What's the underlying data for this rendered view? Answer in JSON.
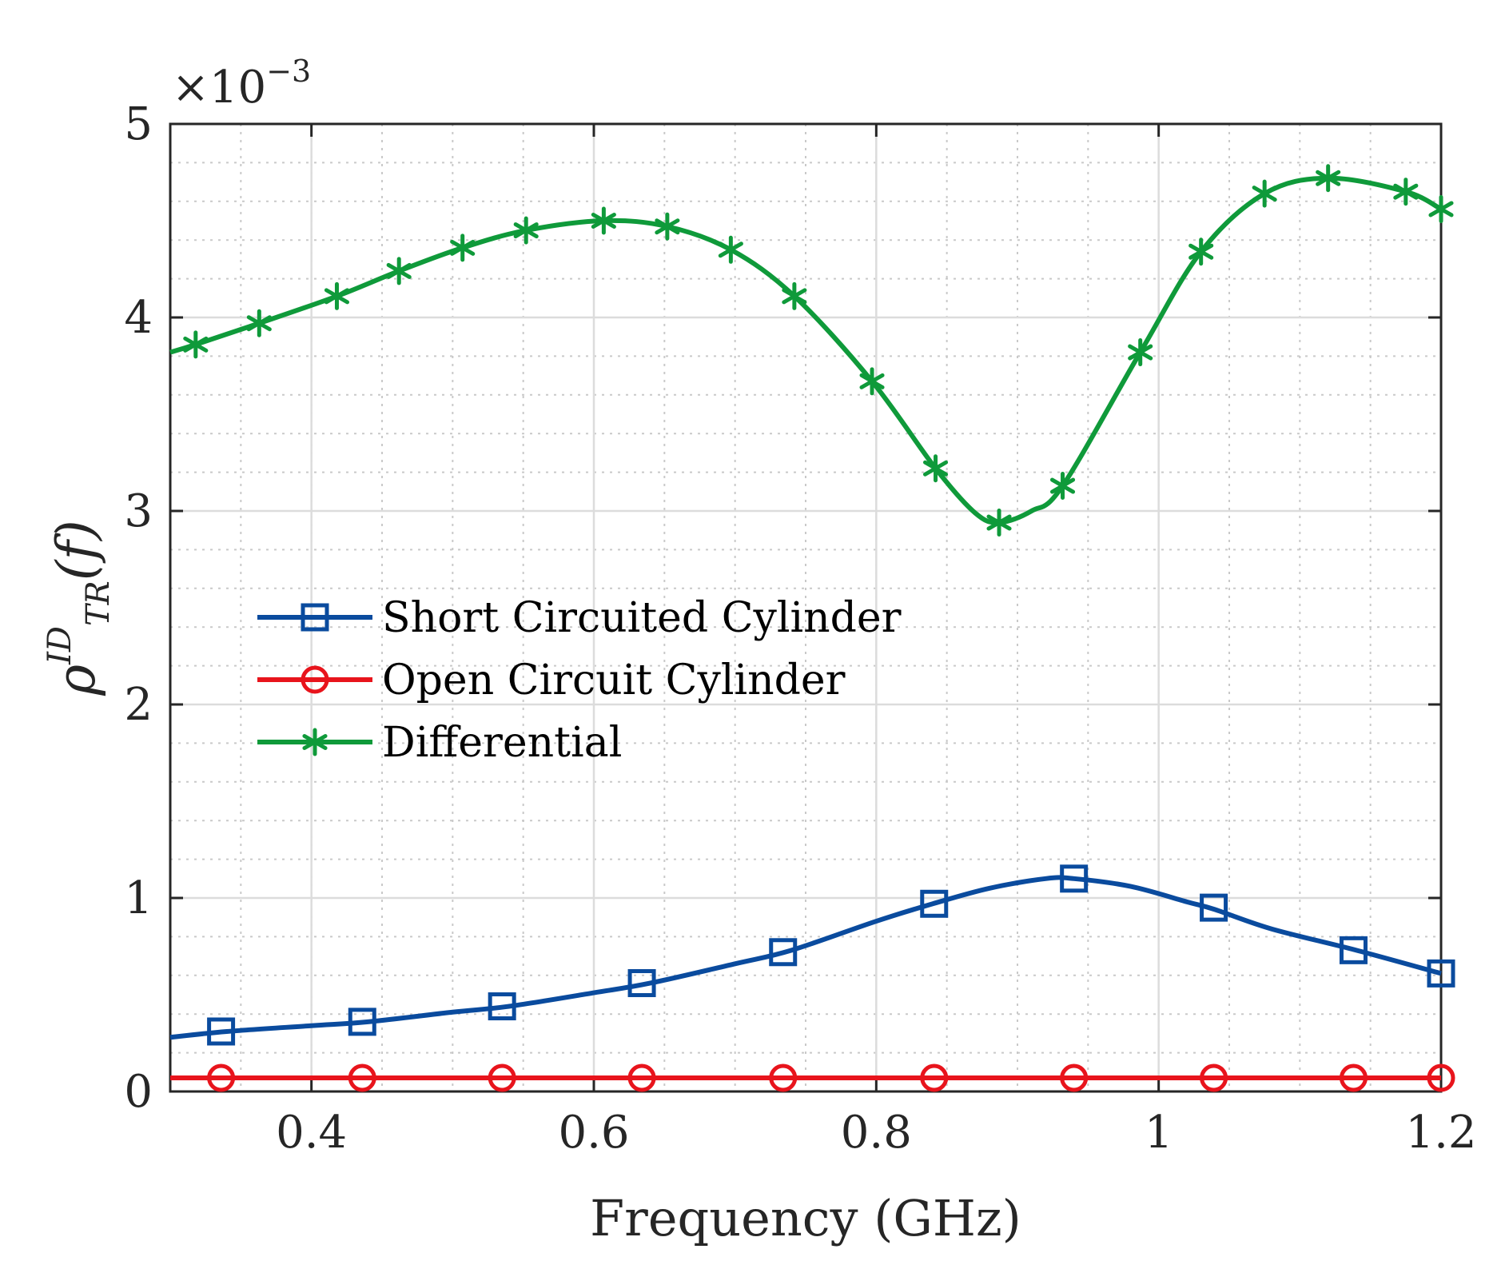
{
  "chart_data": {
    "type": "line",
    "title": "",
    "xlabel": "Frequency (GHz)",
    "ylabel": {
      "base": "ρ",
      "sup": "ID",
      "sub": "TR",
      "arg": "(f)"
    },
    "y_exponent": {
      "prefix": "×10",
      "power": "−3"
    },
    "xlim": [
      0.3,
      1.2
    ],
    "ylim": [
      0,
      5
    ],
    "x_ticks": [
      0.4,
      0.6,
      0.8,
      1.0,
      1.2
    ],
    "x_tick_labels": [
      "0.4",
      "0.6",
      "0.8",
      "1",
      "1.2"
    ],
    "y_ticks": [
      0,
      1,
      2,
      3,
      4,
      5
    ],
    "y_tick_labels": [
      "0",
      "1",
      "2",
      "3",
      "4",
      "5"
    ],
    "grid": true,
    "minor_grid": true,
    "legend_position": "center-left",
    "series": [
      {
        "name": "Short Circuited Cylinder",
        "color": "#0a4b9e",
        "marker": "square",
        "x": [
          0.3,
          0.34,
          0.4,
          0.44,
          0.5,
          0.54,
          0.6,
          0.64,
          0.7,
          0.74,
          0.8,
          0.84,
          0.88,
          0.92,
          0.94,
          0.98,
          1.02,
          1.04,
          1.08,
          1.14,
          1.2
        ],
        "values": [
          0.28,
          0.31,
          0.34,
          0.36,
          0.41,
          0.44,
          0.51,
          0.56,
          0.66,
          0.73,
          0.88,
          0.97,
          1.05,
          1.1,
          1.1,
          1.06,
          0.98,
          0.94,
          0.84,
          0.73,
          0.61
        ],
        "marker_x": [
          0.336,
          0.436,
          0.535,
          0.634,
          0.734,
          0.841,
          0.94,
          1.039,
          1.138,
          1.2
        ],
        "marker_values": [
          0.31,
          0.36,
          0.44,
          0.56,
          0.72,
          0.97,
          1.1,
          0.95,
          0.73,
          0.61
        ]
      },
      {
        "name": "Open Circuit Cylinder",
        "color": "#e8141c",
        "marker": "circle",
        "x": [
          0.3,
          1.2
        ],
        "values": [
          0.07,
          0.07
        ],
        "marker_x": [
          0.336,
          0.436,
          0.535,
          0.634,
          0.734,
          0.841,
          0.94,
          1.039,
          1.138,
          1.2
        ],
        "marker_values": [
          0.07,
          0.07,
          0.07,
          0.07,
          0.07,
          0.07,
          0.07,
          0.07,
          0.07,
          0.07
        ]
      },
      {
        "name": "Differential",
        "color": "#0f9a3a",
        "marker": "asterisk",
        "x": [
          0.3,
          0.318,
          0.363,
          0.418,
          0.462,
          0.507,
          0.552,
          0.607,
          0.652,
          0.697,
          0.742,
          0.797,
          0.842,
          0.87,
          0.887,
          0.91,
          0.932,
          0.987,
          1.03,
          1.075,
          1.12,
          1.175,
          1.2
        ],
        "values": [
          3.82,
          3.86,
          3.97,
          4.11,
          4.24,
          4.36,
          4.45,
          4.5,
          4.47,
          4.35,
          4.11,
          3.67,
          3.22,
          2.99,
          2.94,
          3.0,
          3.13,
          3.82,
          4.34,
          4.64,
          4.72,
          4.65,
          4.56
        ],
        "marker_x": [
          0.318,
          0.363,
          0.418,
          0.462,
          0.507,
          0.552,
          0.607,
          0.652,
          0.697,
          0.742,
          0.797,
          0.842,
          0.887,
          0.932,
          0.987,
          1.03,
          1.075,
          1.12,
          1.175,
          1.2
        ],
        "marker_values": [
          3.86,
          3.97,
          4.11,
          4.24,
          4.36,
          4.45,
          4.5,
          4.47,
          4.35,
          4.11,
          3.67,
          3.22,
          2.94,
          3.13,
          3.82,
          4.34,
          4.64,
          4.72,
          4.65,
          4.56
        ]
      }
    ]
  }
}
